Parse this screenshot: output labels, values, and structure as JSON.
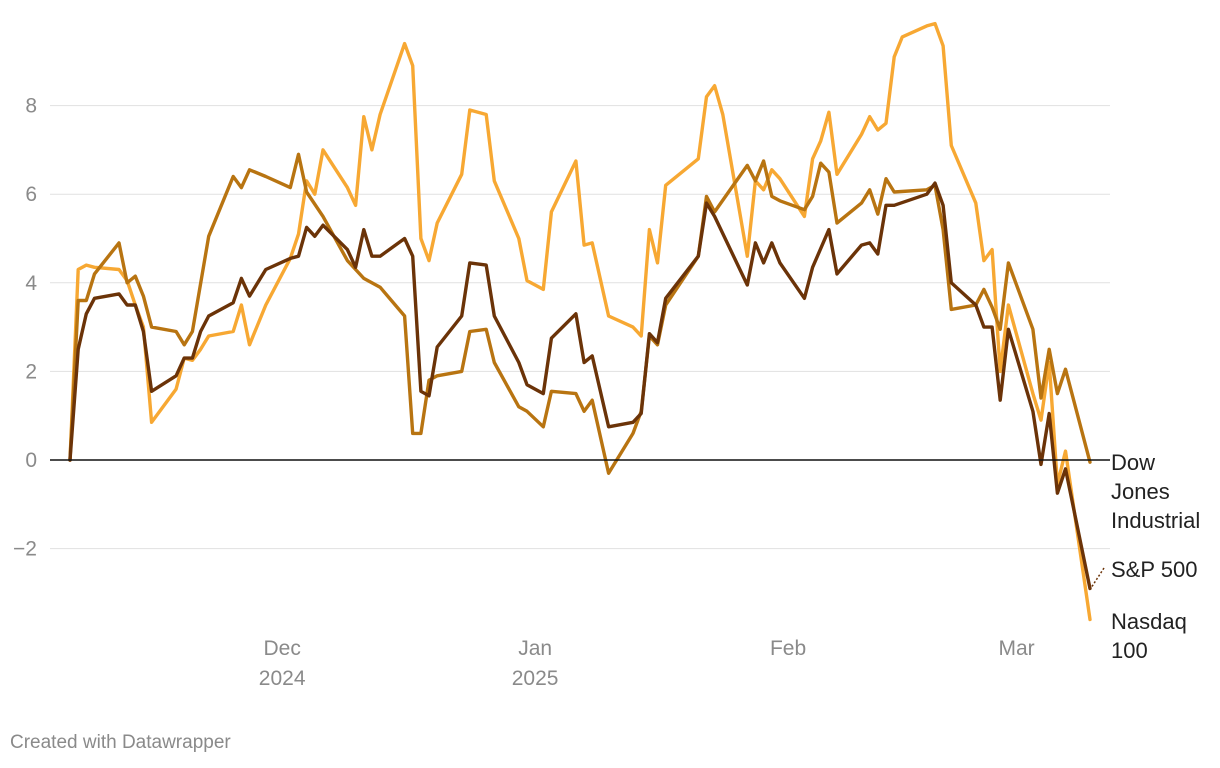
{
  "credit": "Created with Datawrapper",
  "chart_data": {
    "type": "line",
    "title": "",
    "xlabel": "",
    "ylabel": "",
    "x_range": [
      "2024-11-05",
      "2025-03-10"
    ],
    "ylim": [
      -4,
      10
    ],
    "y_ticks": [
      -2,
      0,
      2,
      4,
      6,
      8
    ],
    "y_tick_labels": [
      "−2",
      "0",
      "2",
      "4",
      "6",
      "8"
    ],
    "x_ticks": [
      {
        "date": "2024-12-01",
        "label": "Dec",
        "sublabel": "2024"
      },
      {
        "date": "2025-01-01",
        "label": "Jan",
        "sublabel": "2025"
      },
      {
        "date": "2025-02-01",
        "label": "Feb",
        "sublabel": ""
      },
      {
        "date": "2025-03-01",
        "label": "Mar",
        "sublabel": ""
      }
    ],
    "grid": true,
    "series": [
      {
        "name": "Dow Jones Industrial",
        "label_lines": [
          "Dow",
          "Jones",
          "Industrial"
        ],
        "color": "#b87411",
        "points": [
          [
            "2024-11-05",
            0.0
          ],
          [
            "2024-11-06",
            3.6
          ],
          [
            "2024-11-07",
            3.6
          ],
          [
            "2024-11-08",
            4.2
          ],
          [
            "2024-11-11",
            4.9
          ],
          [
            "2024-11-12",
            4.0
          ],
          [
            "2024-11-13",
            4.15
          ],
          [
            "2024-11-14",
            3.7
          ],
          [
            "2024-11-15",
            3.0
          ],
          [
            "2024-11-18",
            2.9
          ],
          [
            "2024-11-19",
            2.6
          ],
          [
            "2024-11-20",
            2.9
          ],
          [
            "2024-11-22",
            5.05
          ],
          [
            "2024-11-25",
            6.4
          ],
          [
            "2024-11-26",
            6.15
          ],
          [
            "2024-11-27",
            6.55
          ],
          [
            "2024-11-29",
            6.4
          ],
          [
            "2024-12-02",
            6.15
          ],
          [
            "2024-12-03",
            6.9
          ],
          [
            "2024-12-04",
            6.05
          ],
          [
            "2024-12-06",
            5.5
          ],
          [
            "2024-12-09",
            4.5
          ],
          [
            "2024-12-10",
            4.3
          ],
          [
            "2024-12-11",
            4.1
          ],
          [
            "2024-12-13",
            3.9
          ],
          [
            "2024-12-16",
            3.25
          ],
          [
            "2024-12-17",
            0.6
          ],
          [
            "2024-12-18",
            0.6
          ],
          [
            "2024-12-19",
            1.8
          ],
          [
            "2024-12-20",
            1.9
          ],
          [
            "2024-12-23",
            2.0
          ],
          [
            "2024-12-24",
            2.9
          ],
          [
            "2024-12-26",
            2.95
          ],
          [
            "2024-12-27",
            2.2
          ],
          [
            "2024-12-30",
            1.2
          ],
          [
            "2024-12-31",
            1.1
          ],
          [
            "2025-01-02",
            0.75
          ],
          [
            "2025-01-03",
            1.55
          ],
          [
            "2025-01-06",
            1.5
          ],
          [
            "2025-01-07",
            1.1
          ],
          [
            "2025-01-08",
            1.35
          ],
          [
            "2025-01-10",
            -0.3
          ],
          [
            "2025-01-13",
            0.6
          ],
          [
            "2025-01-14",
            1.1
          ],
          [
            "2025-01-15",
            2.8
          ],
          [
            "2025-01-16",
            2.6
          ],
          [
            "2025-01-17",
            3.5
          ],
          [
            "2025-01-21",
            4.6
          ],
          [
            "2025-01-22",
            5.95
          ],
          [
            "2025-01-23",
            5.6
          ],
          [
            "2025-01-27",
            6.65
          ],
          [
            "2025-01-28",
            6.3
          ],
          [
            "2025-01-29",
            6.75
          ],
          [
            "2025-01-30",
            5.95
          ],
          [
            "2025-01-31",
            5.85
          ],
          [
            "2025-02-03",
            5.65
          ],
          [
            "2025-02-04",
            5.95
          ],
          [
            "2025-02-05",
            6.7
          ],
          [
            "2025-02-06",
            6.5
          ],
          [
            "2025-02-07",
            5.35
          ],
          [
            "2025-02-10",
            5.8
          ],
          [
            "2025-02-11",
            6.1
          ],
          [
            "2025-02-12",
            5.55
          ],
          [
            "2025-02-13",
            6.35
          ],
          [
            "2025-02-14",
            6.05
          ],
          [
            "2025-02-18",
            6.1
          ],
          [
            "2025-02-19",
            6.2
          ],
          [
            "2025-02-20",
            5.2
          ],
          [
            "2025-02-21",
            3.4
          ],
          [
            "2025-02-24",
            3.5
          ],
          [
            "2025-02-25",
            3.85
          ],
          [
            "2025-02-26",
            3.45
          ],
          [
            "2025-02-27",
            2.95
          ],
          [
            "2025-02-28",
            4.45
          ],
          [
            "2025-03-03",
            2.95
          ],
          [
            "2025-03-04",
            1.4
          ],
          [
            "2025-03-05",
            2.5
          ],
          [
            "2025-03-06",
            1.5
          ],
          [
            "2025-03-07",
            2.05
          ],
          [
            "2025-03-10",
            -0.05
          ]
        ]
      },
      {
        "name": "S&P 500",
        "label_lines": [
          "S&P 500"
        ],
        "color": "#6b3308",
        "points": [
          [
            "2024-11-05",
            0.0
          ],
          [
            "2024-11-06",
            2.5
          ],
          [
            "2024-11-07",
            3.3
          ],
          [
            "2024-11-08",
            3.65
          ],
          [
            "2024-11-11",
            3.75
          ],
          [
            "2024-11-12",
            3.5
          ],
          [
            "2024-11-13",
            3.5
          ],
          [
            "2024-11-14",
            2.9
          ],
          [
            "2024-11-15",
            1.55
          ],
          [
            "2024-11-18",
            1.9
          ],
          [
            "2024-11-19",
            2.3
          ],
          [
            "2024-11-20",
            2.3
          ],
          [
            "2024-11-21",
            2.9
          ],
          [
            "2024-11-22",
            3.25
          ],
          [
            "2024-11-25",
            3.55
          ],
          [
            "2024-11-26",
            4.1
          ],
          [
            "2024-11-27",
            3.7
          ],
          [
            "2024-11-29",
            4.3
          ],
          [
            "2024-12-02",
            4.55
          ],
          [
            "2024-12-03",
            4.6
          ],
          [
            "2024-12-04",
            5.25
          ],
          [
            "2024-12-05",
            5.05
          ],
          [
            "2024-12-06",
            5.3
          ],
          [
            "2024-12-09",
            4.75
          ],
          [
            "2024-12-10",
            4.35
          ],
          [
            "2024-12-11",
            5.2
          ],
          [
            "2024-12-12",
            4.6
          ],
          [
            "2024-12-13",
            4.6
          ],
          [
            "2024-12-16",
            5.0
          ],
          [
            "2024-12-17",
            4.6
          ],
          [
            "2024-12-18",
            1.55
          ],
          [
            "2024-12-19",
            1.45
          ],
          [
            "2024-12-20",
            2.55
          ],
          [
            "2024-12-23",
            3.25
          ],
          [
            "2024-12-24",
            4.45
          ],
          [
            "2024-12-26",
            4.4
          ],
          [
            "2024-12-27",
            3.25
          ],
          [
            "2024-12-30",
            2.2
          ],
          [
            "2024-12-31",
            1.7
          ],
          [
            "2025-01-02",
            1.5
          ],
          [
            "2025-01-03",
            2.75
          ],
          [
            "2025-01-06",
            3.3
          ],
          [
            "2025-01-07",
            2.2
          ],
          [
            "2025-01-08",
            2.35
          ],
          [
            "2025-01-10",
            0.75
          ],
          [
            "2025-01-13",
            0.85
          ],
          [
            "2025-01-14",
            1.05
          ],
          [
            "2025-01-15",
            2.85
          ],
          [
            "2025-01-16",
            2.65
          ],
          [
            "2025-01-17",
            3.65
          ],
          [
            "2025-01-21",
            4.6
          ],
          [
            "2025-01-22",
            5.8
          ],
          [
            "2025-01-23",
            5.5
          ],
          [
            "2025-01-27",
            3.95
          ],
          [
            "2025-01-28",
            4.9
          ],
          [
            "2025-01-29",
            4.45
          ],
          [
            "2025-01-30",
            4.9
          ],
          [
            "2025-01-31",
            4.45
          ],
          [
            "2025-02-03",
            3.65
          ],
          [
            "2025-02-04",
            4.35
          ],
          [
            "2025-02-06",
            5.2
          ],
          [
            "2025-02-07",
            4.2
          ],
          [
            "2025-02-10",
            4.85
          ],
          [
            "2025-02-11",
            4.9
          ],
          [
            "2025-02-12",
            4.65
          ],
          [
            "2025-02-13",
            5.75
          ],
          [
            "2025-02-14",
            5.75
          ],
          [
            "2025-02-18",
            6.0
          ],
          [
            "2025-02-19",
            6.25
          ],
          [
            "2025-02-20",
            5.75
          ],
          [
            "2025-02-21",
            4.0
          ],
          [
            "2025-02-24",
            3.5
          ],
          [
            "2025-02-25",
            3.0
          ],
          [
            "2025-02-26",
            3.0
          ],
          [
            "2025-02-27",
            1.35
          ],
          [
            "2025-02-28",
            2.95
          ],
          [
            "2025-03-03",
            1.1
          ],
          [
            "2025-03-04",
            -0.1
          ],
          [
            "2025-03-05",
            1.05
          ],
          [
            "2025-03-06",
            -0.75
          ],
          [
            "2025-03-07",
            -0.2
          ],
          [
            "2025-03-10",
            -2.9
          ]
        ]
      },
      {
        "name": "Nasdaq 100",
        "label_lines": [
          "Nasdaq",
          "100"
        ],
        "color": "#f7a833",
        "points": [
          [
            "2024-11-05",
            0.0
          ],
          [
            "2024-11-06",
            4.3
          ],
          [
            "2024-11-07",
            4.4
          ],
          [
            "2024-11-08",
            4.35
          ],
          [
            "2024-11-11",
            4.3
          ],
          [
            "2024-11-12",
            4.05
          ],
          [
            "2024-11-13",
            3.5
          ],
          [
            "2024-11-14",
            3.0
          ],
          [
            "2024-11-15",
            0.85
          ],
          [
            "2024-11-18",
            1.6
          ],
          [
            "2024-11-19",
            2.3
          ],
          [
            "2024-11-20",
            2.25
          ],
          [
            "2024-11-21",
            2.5
          ],
          [
            "2024-11-22",
            2.8
          ],
          [
            "2024-11-25",
            2.9
          ],
          [
            "2024-11-26",
            3.5
          ],
          [
            "2024-11-27",
            2.6
          ],
          [
            "2024-11-29",
            3.5
          ],
          [
            "2024-12-02",
            4.55
          ],
          [
            "2024-12-03",
            5.1
          ],
          [
            "2024-12-04",
            6.3
          ],
          [
            "2024-12-05",
            6.0
          ],
          [
            "2024-12-06",
            7.0
          ],
          [
            "2024-12-09",
            6.15
          ],
          [
            "2024-12-10",
            5.75
          ],
          [
            "2024-12-11",
            7.75
          ],
          [
            "2024-12-12",
            7.0
          ],
          [
            "2024-12-13",
            7.8
          ],
          [
            "2024-12-16",
            9.4
          ],
          [
            "2024-12-17",
            8.9
          ],
          [
            "2024-12-18",
            5.0
          ],
          [
            "2024-12-19",
            4.5
          ],
          [
            "2024-12-20",
            5.35
          ],
          [
            "2024-12-23",
            6.45
          ],
          [
            "2024-12-24",
            7.9
          ],
          [
            "2024-12-26",
            7.8
          ],
          [
            "2024-12-27",
            6.3
          ],
          [
            "2024-12-30",
            5.0
          ],
          [
            "2024-12-31",
            4.05
          ],
          [
            "2025-01-02",
            3.85
          ],
          [
            "2025-01-03",
            5.6
          ],
          [
            "2025-01-06",
            6.75
          ],
          [
            "2025-01-07",
            4.85
          ],
          [
            "2025-01-08",
            4.9
          ],
          [
            "2025-01-10",
            3.25
          ],
          [
            "2025-01-13",
            3.0
          ],
          [
            "2025-01-14",
            2.8
          ],
          [
            "2025-01-15",
            5.2
          ],
          [
            "2025-01-16",
            4.45
          ],
          [
            "2025-01-17",
            6.2
          ],
          [
            "2025-01-21",
            6.8
          ],
          [
            "2025-01-22",
            8.2
          ],
          [
            "2025-01-23",
            8.45
          ],
          [
            "2025-01-24",
            7.8
          ],
          [
            "2025-01-27",
            4.6
          ],
          [
            "2025-01-28",
            6.3
          ],
          [
            "2025-01-29",
            6.1
          ],
          [
            "2025-01-30",
            6.55
          ],
          [
            "2025-01-31",
            6.35
          ],
          [
            "2025-02-03",
            5.5
          ],
          [
            "2025-02-04",
            6.8
          ],
          [
            "2025-02-05",
            7.2
          ],
          [
            "2025-02-06",
            7.85
          ],
          [
            "2025-02-07",
            6.45
          ],
          [
            "2025-02-10",
            7.35
          ],
          [
            "2025-02-11",
            7.75
          ],
          [
            "2025-02-12",
            7.45
          ],
          [
            "2025-02-13",
            7.6
          ],
          [
            "2025-02-14",
            9.1
          ],
          [
            "2025-02-15",
            9.55
          ],
          [
            "2025-02-18",
            9.8
          ],
          [
            "2025-02-19",
            9.85
          ],
          [
            "2025-02-20",
            9.35
          ],
          [
            "2025-02-21",
            7.1
          ],
          [
            "2025-02-24",
            5.8
          ],
          [
            "2025-02-25",
            4.5
          ],
          [
            "2025-02-26",
            4.75
          ],
          [
            "2025-02-27",
            2.0
          ],
          [
            "2025-02-28",
            3.5
          ],
          [
            "2025-03-03",
            1.5
          ],
          [
            "2025-03-04",
            0.9
          ],
          [
            "2025-03-05",
            2.2
          ],
          [
            "2025-03-06",
            -0.55
          ],
          [
            "2025-03-07",
            0.2
          ],
          [
            "2025-03-10",
            -3.6
          ]
        ]
      }
    ]
  }
}
